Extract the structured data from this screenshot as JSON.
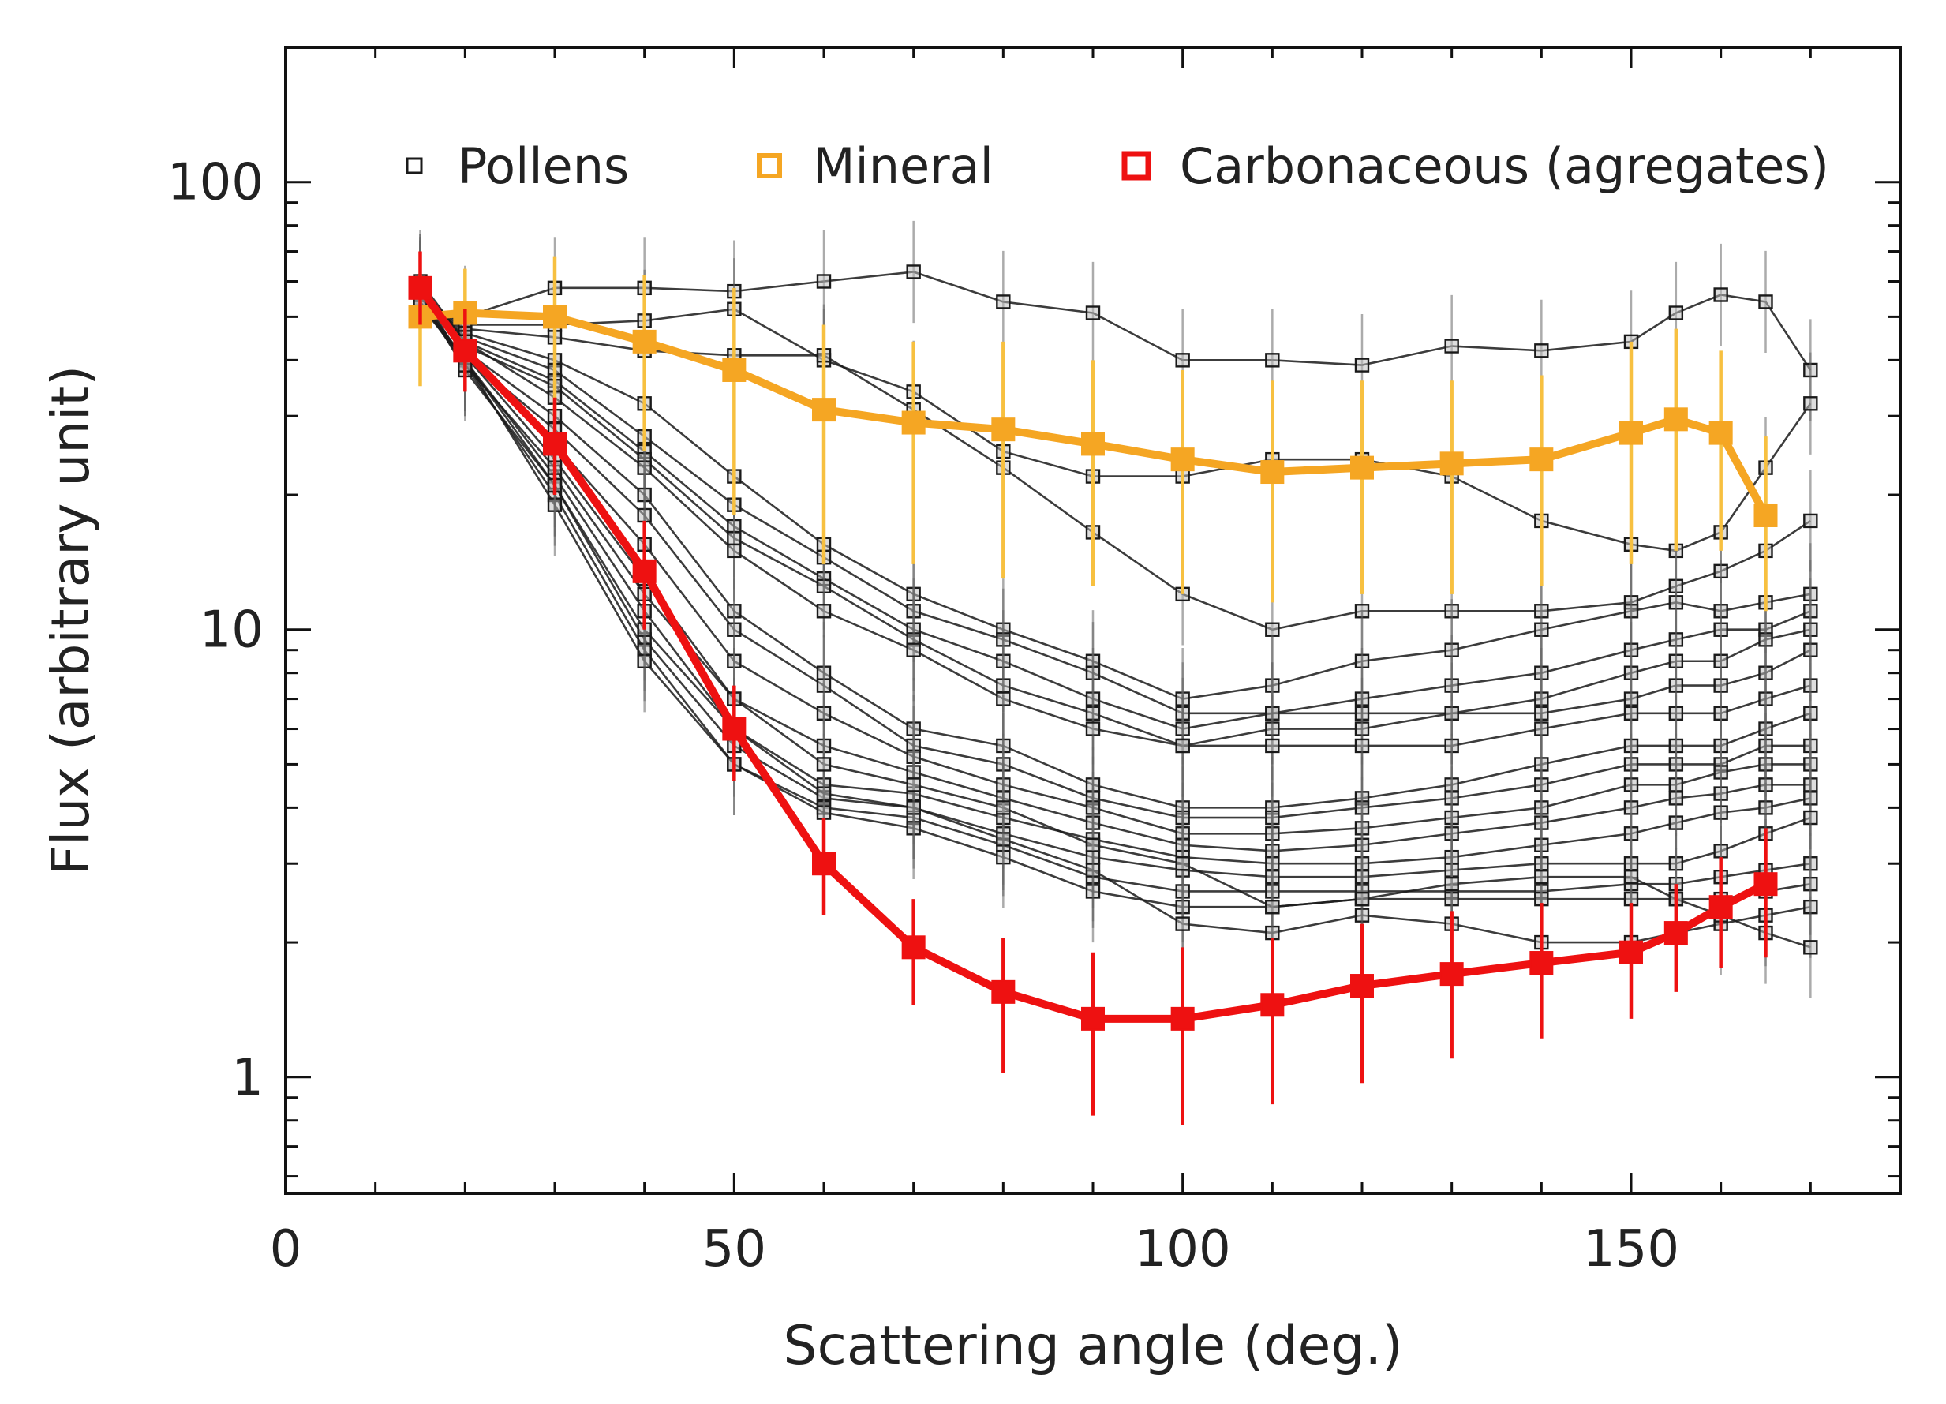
{
  "chart_data": {
    "type": "line",
    "title": "",
    "xlabel": "Scattering angle (deg.)",
    "ylabel": "Flux (arbitrary unit)",
    "xlim": [
      0,
      180
    ],
    "ylim": [
      0.55,
      200
    ],
    "yscale": "log",
    "x_ticks": [
      0,
      50,
      100,
      150
    ],
    "x_tick_labels": [
      "0",
      "50",
      "100",
      "150"
    ],
    "y_ticks": [
      1,
      10,
      100
    ],
    "y_tick_labels": [
      "1",
      "10",
      "100"
    ],
    "grid": false,
    "legend_position": "top",
    "legend": [
      {
        "label": "Pollens",
        "color": "#1a1a1a"
      },
      {
        "label": "Mineral",
        "color": "#f5a623"
      },
      {
        "label": "Carbonaceous (agregates)",
        "color": "#ee1111"
      }
    ],
    "colors": {
      "pollens": "#1a1a1a",
      "mineral": "#f5a623",
      "mineral_error": "#f7c040",
      "carbonaceous": "#ee1111"
    },
    "pollen_x": [
      15,
      20,
      30,
      40,
      50,
      60,
      70,
      80,
      90,
      100,
      110,
      120,
      130,
      140,
      150,
      155,
      160,
      165,
      170
    ],
    "pollen_series": [
      {
        "name": "Pollen 1",
        "values": [
          52,
          50,
          58,
          58,
          57,
          60,
          63,
          54,
          51,
          40,
          40,
          39,
          43,
          42,
          44,
          51,
          56,
          54,
          38
        ]
      },
      {
        "name": "Pollen 2",
        "values": [
          55,
          48,
          48,
          49,
          52,
          40,
          34,
          25,
          22,
          22,
          24,
          24,
          22,
          17.5,
          15.5,
          15,
          16.5,
          23,
          32
        ]
      },
      {
        "name": "Pollen 3",
        "values": [
          56,
          47,
          45,
          42,
          41,
          41,
          31,
          23,
          16.5,
          12,
          10,
          11,
          11,
          11,
          11.5,
          12.5,
          13.5,
          15,
          17.5
        ]
      },
      {
        "name": "Pollen 4",
        "values": [
          57,
          46,
          40,
          32,
          22,
          15.5,
          12,
          10,
          8.5,
          7,
          7.5,
          8.5,
          9,
          10,
          11,
          11.5,
          11,
          11.5,
          12
        ]
      },
      {
        "name": "Pollen 5",
        "values": [
          58,
          45,
          38,
          27,
          19,
          14.5,
          11,
          9.5,
          8,
          6.5,
          6.5,
          7,
          7.5,
          8,
          9,
          9.5,
          10,
          10,
          11
        ]
      },
      {
        "name": "Pollen 6",
        "values": [
          59,
          44,
          36,
          25,
          17,
          13,
          10,
          8.5,
          7,
          6,
          6.5,
          6.5,
          6.5,
          7,
          8,
          8.5,
          8.5,
          9.5,
          10
        ]
      },
      {
        "name": "Pollen 7",
        "values": [
          57,
          43,
          35,
          24,
          16,
          12.5,
          9.5,
          7.5,
          6.5,
          5.5,
          6,
          6,
          6.5,
          6.5,
          7,
          7.5,
          7.5,
          8,
          9
        ]
      },
      {
        "name": "Pollen 8",
        "values": [
          60,
          44,
          33,
          23,
          15,
          11,
          9,
          7,
          6,
          5.5,
          5.5,
          5.5,
          5.5,
          6,
          6.5,
          6.5,
          6.5,
          7,
          7.5
        ]
      },
      {
        "name": "Pollen 9",
        "values": [
          58,
          42,
          30,
          20,
          11,
          8,
          6,
          5.5,
          4.5,
          4,
          4,
          4.2,
          4.5,
          5,
          5.5,
          5.5,
          5.5,
          6,
          6.5
        ]
      },
      {
        "name": "Pollen 10",
        "values": [
          57,
          41,
          28,
          18,
          10,
          7.5,
          5.5,
          5,
          4.2,
          3.8,
          3.8,
          4,
          4.2,
          4.5,
          5,
          5,
          5,
          5.5,
          5.5
        ]
      },
      {
        "name": "Pollen 11",
        "values": [
          56,
          42,
          26,
          15.5,
          8.5,
          6.5,
          5.2,
          4.5,
          4,
          3.5,
          3.5,
          3.6,
          3.8,
          4,
          4.5,
          4.5,
          4.8,
          5,
          5
        ]
      },
      {
        "name": "Pollen 12",
        "values": [
          59,
          41,
          24,
          13,
          7,
          5.5,
          4.8,
          4.2,
          3.7,
          3.3,
          3.2,
          3.3,
          3.5,
          3.7,
          4,
          4.2,
          4.3,
          4.5,
          4.5
        ]
      },
      {
        "name": "Pollen 13",
        "values": [
          55,
          40,
          22,
          11,
          6,
          4.5,
          4.3,
          3.8,
          3.4,
          3.1,
          3,
          3,
          3.1,
          3.3,
          3.5,
          3.7,
          3.9,
          4,
          4.2
        ]
      },
      {
        "name": "Pollen 14",
        "values": [
          54,
          40,
          21,
          9.5,
          5.5,
          4.2,
          4,
          3.5,
          3.1,
          2.9,
          2.8,
          2.8,
          2.9,
          3,
          3,
          3,
          3.2,
          3.5,
          3.8
        ]
      },
      {
        "name": "Pollen 15",
        "values": [
          57,
          39,
          20,
          9,
          5,
          4,
          3.8,
          3.3,
          2.8,
          2.6,
          2.6,
          2.6,
          2.6,
          2.6,
          2.7,
          2.7,
          2.8,
          2.9,
          3
        ]
      },
      {
        "name": "Pollen 16",
        "values": [
          53,
          40,
          19,
          8.5,
          5,
          3.9,
          3.6,
          3.1,
          2.6,
          2.4,
          2.4,
          2.5,
          2.5,
          2.5,
          2.5,
          2.5,
          2.5,
          2.6,
          2.7
        ]
      },
      {
        "name": "Pollen 17",
        "values": [
          56,
          38,
          21,
          10,
          6,
          4.3,
          4,
          3.4,
          2.9,
          2.2,
          2.1,
          2.3,
          2.2,
          2,
          2,
          2.1,
          2.2,
          2.3,
          2.4
        ]
      },
      {
        "name": "Pollen 18",
        "values": [
          54,
          39,
          23,
          12,
          7,
          5,
          4.5,
          4,
          3.3,
          3,
          2.4,
          2.5,
          2.7,
          2.8,
          2.8,
          2.5,
          2.3,
          2.1,
          1.95
        ]
      }
    ],
    "series": [
      {
        "name": "Mineral",
        "x": [
          15,
          20,
          30,
          40,
          50,
          60,
          70,
          80,
          90,
          100,
          110,
          120,
          130,
          140,
          150,
          155,
          160,
          165
        ],
        "values": [
          50,
          51,
          50,
          44,
          38,
          31,
          29,
          28,
          26,
          24,
          22.5,
          23,
          23.5,
          24,
          27.5,
          29.5,
          27.5,
          18
        ],
        "error_low": [
          35,
          37,
          30,
          25,
          18,
          14,
          14,
          13,
          12.5,
          12,
          11.5,
          12,
          12,
          12.5,
          14,
          15,
          15,
          11
        ],
        "error_high": [
          62,
          64,
          68,
          62,
          58,
          48,
          44,
          44,
          40,
          38,
          36,
          36,
          36,
          37,
          44,
          47,
          42,
          27
        ]
      },
      {
        "name": "Carbonaceous (agregates)",
        "x": [
          15,
          20,
          30,
          40,
          50,
          60,
          70,
          80,
          90,
          100,
          110,
          120,
          130,
          140,
          150,
          155,
          160,
          165
        ],
        "values": [
          58,
          42,
          26,
          13.5,
          6,
          3,
          1.95,
          1.55,
          1.35,
          1.35,
          1.45,
          1.6,
          1.7,
          1.8,
          1.9,
          2.1,
          2.4,
          2.7
        ],
        "error_low": [
          48,
          34,
          20,
          10,
          4.6,
          2.3,
          1.45,
          1.02,
          0.82,
          0.78,
          0.87,
          0.97,
          1.1,
          1.22,
          1.35,
          1.55,
          1.75,
          1.85
        ],
        "error_high": [
          70,
          52,
          33,
          17.5,
          7.5,
          3.8,
          2.5,
          2.05,
          1.9,
          1.95,
          2.05,
          2.2,
          2.35,
          2.45,
          2.45,
          2.7,
          3.1,
          3.6
        ]
      }
    ]
  }
}
